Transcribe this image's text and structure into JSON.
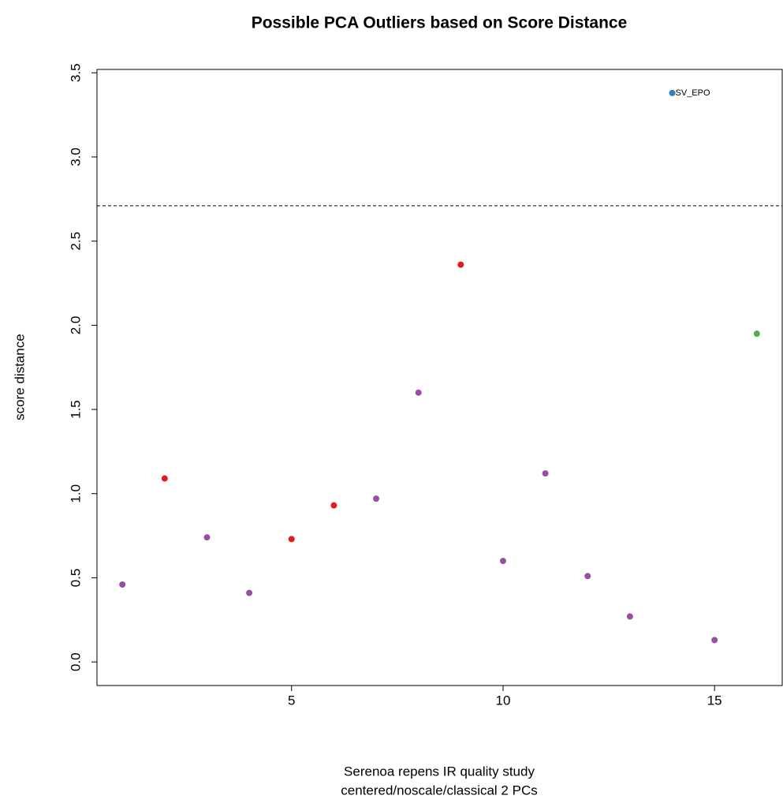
{
  "chart_data": {
    "type": "scatter",
    "title": "Possible PCA Outliers based on Score Distance",
    "xlabel": [
      "Serenoa repens IR quality study",
      "centered/noscale/classical 2 PCs"
    ],
    "ylabel": "score distance",
    "x": [
      1,
      2,
      3,
      4,
      5,
      6,
      7,
      8,
      9,
      10,
      11,
      12,
      13,
      14,
      15,
      16
    ],
    "values": [
      0.46,
      1.09,
      0.74,
      0.41,
      0.73,
      0.93,
      0.97,
      1.6,
      2.36,
      0.6,
      1.12,
      0.51,
      0.27,
      3.38,
      0.13,
      1.95
    ],
    "colors": [
      "#984ea3",
      "#e41a1c",
      "#984ea3",
      "#984ea3",
      "#e41a1c",
      "#e41a1c",
      "#984ea3",
      "#984ea3",
      "#e41a1c",
      "#984ea3",
      "#984ea3",
      "#984ea3",
      "#984ea3",
      "#377eb8",
      "#984ea3",
      "#4daf4a"
    ],
    "point_labels": [
      null,
      null,
      null,
      null,
      null,
      null,
      null,
      null,
      null,
      null,
      null,
      null,
      null,
      "SV_EPO",
      null,
      null
    ],
    "cutoff": 2.71,
    "xlim": [
      0.4,
      16.6
    ],
    "ylim": [
      -0.14,
      3.52
    ],
    "xticks": [
      5,
      10,
      15
    ],
    "yticks": [
      {
        "value": 0,
        "label": "0.0"
      },
      0.5,
      {
        "value": 1,
        "label": "1.0"
      },
      1.5,
      {
        "value": 2,
        "label": "2.0"
      },
      2.5,
      {
        "value": 3,
        "label": "3.0"
      },
      3.5
    ]
  }
}
